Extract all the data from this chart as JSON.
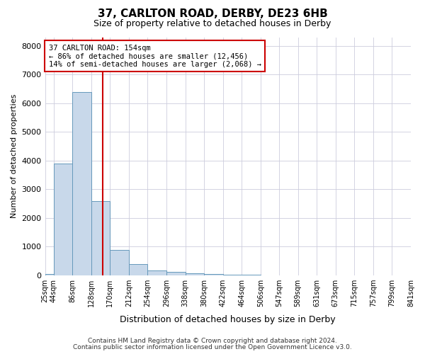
{
  "title": "37, CARLTON ROAD, DERBY, DE23 6HB",
  "subtitle": "Size of property relative to detached houses in Derby",
  "xlabel": "Distribution of detached houses by size in Derby",
  "ylabel": "Number of detached properties",
  "bin_edges": [
    25,
    44,
    86,
    128,
    170,
    212,
    254,
    296,
    338,
    380,
    422,
    464,
    506,
    547,
    589,
    631,
    673,
    715,
    757,
    799,
    841
  ],
  "bin_labels": [
    "25sqm",
    "44sqm",
    "86sqm",
    "128sqm",
    "170sqm",
    "212sqm",
    "254sqm",
    "296sqm",
    "338sqm",
    "380sqm",
    "422sqm",
    "464sqm",
    "506sqm",
    "547sqm",
    "589sqm",
    "631sqm",
    "673sqm",
    "715sqm",
    "757sqm",
    "799sqm",
    "841sqm"
  ],
  "counts": [
    50,
    3900,
    6400,
    2600,
    900,
    400,
    170,
    130,
    80,
    50,
    30,
    15,
    8,
    5,
    3,
    2,
    1,
    1,
    1,
    0
  ],
  "bar_color": "#c8d8ea",
  "bar_edge_color": "#6699bb",
  "property_size": 154,
  "vline_color": "#cc0000",
  "annotation_text": "37 CARLTON ROAD: 154sqm\n← 86% of detached houses are smaller (12,456)\n14% of semi-detached houses are larger (2,068) →",
  "annotation_box_color": "white",
  "annotation_box_edge": "#cc0000",
  "ylim": [
    0,
    8300
  ],
  "yticks": [
    0,
    1000,
    2000,
    3000,
    4000,
    5000,
    6000,
    7000,
    8000
  ],
  "footer1": "Contains HM Land Registry data © Crown copyright and database right 2024.",
  "footer2": "Contains public sector information licensed under the Open Government Licence v3.0.",
  "background_color": "#ffffff",
  "plot_bg_color": "#ffffff",
  "grid_color": "#ccccdd"
}
